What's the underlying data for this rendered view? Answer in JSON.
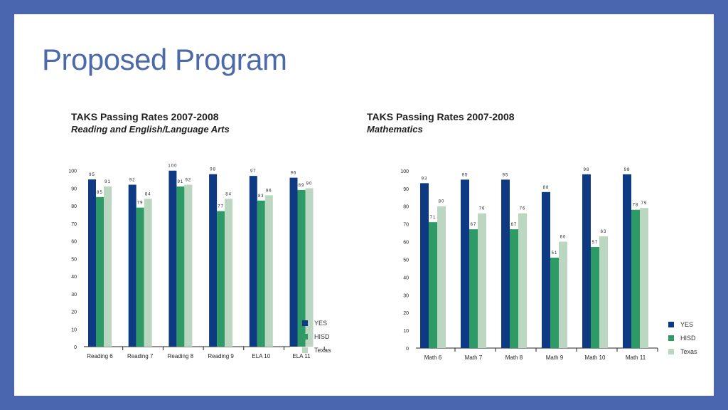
{
  "slide": {
    "title": "Proposed Program"
  },
  "chart_data": [
    {
      "type": "bar",
      "title": "TAKS Passing Rates 2007-2008",
      "subtitle": "Reading and English/Language Arts",
      "categories": [
        "Reading 6",
        "Reading 7",
        "Reading 8",
        "Reading 9",
        "ELA 10",
        "ELA 11"
      ],
      "series": [
        {
          "name": "YES",
          "values": [
            95,
            92,
            100,
            98,
            97,
            96
          ]
        },
        {
          "name": "HISD",
          "values": [
            85,
            79,
            91,
            77,
            83,
            89
          ]
        },
        {
          "name": "Texas",
          "values": [
            91,
            84,
            92,
            84,
            86,
            90
          ]
        }
      ],
      "yticks": [
        0,
        10,
        20,
        30,
        40,
        50,
        60,
        70,
        80,
        90,
        100
      ],
      "ylim": [
        0,
        110
      ],
      "legend": "bottom-right"
    },
    {
      "type": "bar",
      "title": "TAKS Passing Rates 2007-2008",
      "subtitle": "Mathematics",
      "categories": [
        "Math 6",
        "Math 7",
        "Math 8",
        "Math 9",
        "Math 10",
        "Math 11"
      ],
      "series": [
        {
          "name": "YES",
          "values": [
            93,
            95,
            95,
            88,
            98,
            98
          ]
        },
        {
          "name": "HISD",
          "values": [
            71,
            67,
            67,
            51,
            57,
            78
          ]
        },
        {
          "name": "Texas",
          "values": [
            80,
            76,
            76,
            60,
            63,
            79
          ]
        }
      ],
      "yticks": [
        0,
        10,
        20,
        30,
        40,
        50,
        60,
        70,
        80,
        90,
        100
      ],
      "ylim": [
        0,
        110
      ],
      "legend": "bottom-right"
    }
  ],
  "colors": {
    "YES": "#0d3a82",
    "HISD": "#2e9a66",
    "Texas": "#bcd7c1"
  }
}
